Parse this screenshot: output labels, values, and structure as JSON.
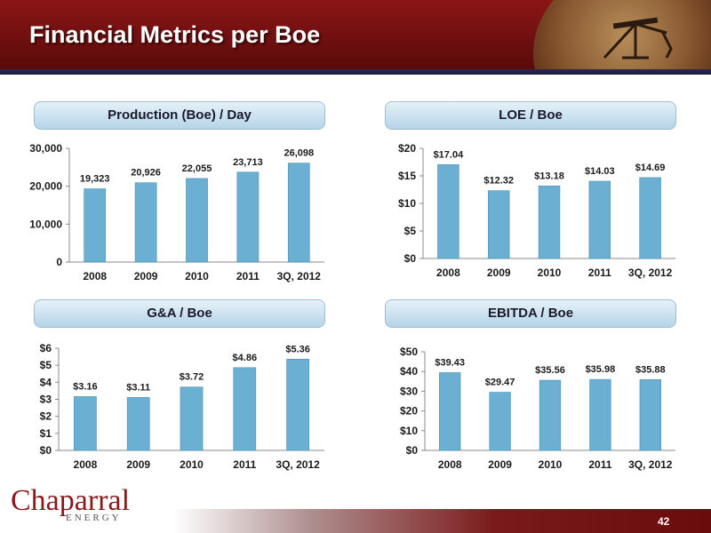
{
  "slide": {
    "title": "Financial Metrics per Boe",
    "page_number": "42"
  },
  "logo": {
    "name": "Chaparral",
    "sub": "ENERGY"
  },
  "colors": {
    "header": "#7a1212",
    "bar": "#6bafd2",
    "bar_stroke": "#4a8fb5",
    "label_bg": "#c8e0ef"
  },
  "chart_data": [
    {
      "id": "production",
      "type": "bar",
      "title": "Production (Boe) / Day",
      "categories": [
        "2008",
        "2009",
        "2010",
        "2011",
        "3Q, 2012"
      ],
      "values": [
        19323,
        20926,
        22055,
        23713,
        26098
      ],
      "data_labels": [
        "19,323",
        "20,926",
        "22,055",
        "23,713",
        "26,098"
      ],
      "ylim": [
        0,
        30000
      ],
      "yticks": [
        0,
        10000,
        20000,
        30000
      ],
      "ytick_labels": [
        "0",
        "10,000",
        "20,000",
        "30,000"
      ],
      "grid": false
    },
    {
      "id": "loe",
      "type": "bar",
      "title": "LOE / Boe",
      "categories": [
        "2008",
        "2009",
        "2010",
        "2011",
        "3Q, 2012"
      ],
      "values": [
        17.04,
        12.32,
        13.18,
        14.03,
        14.69
      ],
      "data_labels": [
        "$17.04",
        "$12.32",
        "$13.18",
        "$14.03",
        "$14.69"
      ],
      "ylim": [
        0,
        20
      ],
      "yticks": [
        0,
        5,
        10,
        15,
        20
      ],
      "ytick_labels": [
        "$0",
        "$5",
        "$10",
        "$15",
        "$20"
      ],
      "grid": false
    },
    {
      "id": "ga",
      "type": "bar",
      "title": "G&A / Boe",
      "categories": [
        "2008",
        "2009",
        "2010",
        "2011",
        "3Q, 2012"
      ],
      "values": [
        3.16,
        3.11,
        3.72,
        4.86,
        5.36
      ],
      "data_labels": [
        "$3.16",
        "$3.11",
        "$3.72",
        "$4.86",
        "$5.36"
      ],
      "ylim": [
        0,
        6
      ],
      "yticks": [
        0,
        1,
        2,
        3,
        4,
        5,
        6
      ],
      "ytick_labels": [
        "$0",
        "$1",
        "$2",
        "$3",
        "$4",
        "$5",
        "$6"
      ],
      "grid": false
    },
    {
      "id": "ebitda",
      "type": "bar",
      "title": "EBITDA / Boe",
      "categories": [
        "2008",
        "2009",
        "2010",
        "2011",
        "3Q, 2012"
      ],
      "values": [
        39.43,
        29.47,
        35.56,
        35.98,
        35.88
      ],
      "data_labels": [
        "$39.43",
        "$29.47",
        "$35.56",
        "$35.98",
        "$35.88"
      ],
      "ylim": [
        0,
        50
      ],
      "yticks": [
        0,
        10,
        20,
        30,
        40,
        50
      ],
      "ytick_labels": [
        "$0",
        "$10",
        "$20",
        "$30",
        "$40",
        "$50"
      ],
      "grid": false
    }
  ]
}
